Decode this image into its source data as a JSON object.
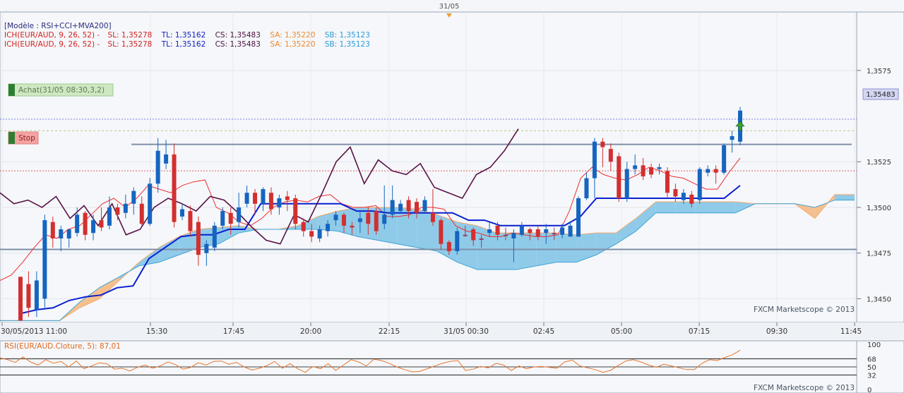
{
  "top_marker": {
    "label": "31/05"
  },
  "legend": {
    "model": "[Modèle : RSI+CCI+MVA200]",
    "lines": [
      {
        "prefix": "ICH(EUR/AUD, 9, 26, 52) -",
        "sl": "SL: 1,35278",
        "tl": "TL: 1,35162",
        "cs": "CS: 1,35483",
        "sa": "SA: 1,35220",
        "sb": "SB: 1,35123"
      },
      {
        "prefix": "ICH(EUR/AUD, 9, 26, 52) -",
        "sl": "SL: 1,35278",
        "tl": "TL: 1,35162",
        "cs": "CS: 1,35483",
        "sa": "SA: 1,35220",
        "sb": "SB: 1,35123"
      }
    ]
  },
  "orders": {
    "buy_label": "Achat(31/05 08:30,3,2)",
    "stop_label": "Stop",
    "buy_price": 1.35483,
    "stop_price": 1.352
  },
  "price_axis": {
    "ticks": [
      1.3575,
      1.3525,
      1.35,
      1.3475,
      1.345
    ],
    "tick_labels": [
      "1,3575",
      "1,3525",
      "1,3500",
      "1,3475",
      "1,3450"
    ],
    "current_label": "1,35483",
    "current_value": 1.35483,
    "min": 1.3437,
    "max": 1.3607
  },
  "time_axis": {
    "labels": [
      "30/05/2013 11:00",
      "15:30",
      "17:45",
      "20:00",
      "22:15",
      "31/05 00:30",
      "02:45",
      "05:00",
      "07:15",
      "09:30",
      "11:45"
    ]
  },
  "watermark": "FXCM Marketscope © 2013",
  "oscillator": {
    "label": "RSI(EUR/AUD.Cloture, 5): 87,01",
    "levels": [
      100,
      68,
      50,
      32,
      0
    ],
    "level_labels": [
      "100",
      "68",
      "50",
      "32",
      "0"
    ],
    "values": [
      70,
      66,
      60,
      72,
      61,
      54,
      66,
      58,
      62,
      50,
      63,
      46,
      52,
      59,
      57,
      45,
      47,
      41,
      49,
      54,
      47,
      52,
      61,
      55,
      45,
      49,
      59,
      54,
      62,
      63,
      56,
      60,
      50,
      43,
      47,
      53,
      62,
      47,
      57,
      46,
      38,
      51,
      46,
      57,
      42,
      54,
      66,
      61,
      52,
      67,
      64,
      58,
      50,
      44,
      39,
      40,
      46,
      52,
      58,
      62,
      64,
      42,
      45,
      51,
      48,
      58,
      54,
      42,
      52,
      46,
      50,
      51,
      49,
      47,
      61,
      65,
      52,
      48,
      44,
      38,
      42,
      53,
      63,
      66,
      61,
      54,
      49,
      56,
      52,
      48,
      44,
      44,
      58,
      66,
      64,
      71,
      77,
      87
    ],
    "watermark": "FXCM Marketscope © 2013"
  },
  "colors": {
    "bull": "#1565c0",
    "bear": "#d32f2f",
    "flat": "#8e4463",
    "tenkan": "#ef2d2d",
    "kijun": "#0a1fd0",
    "chikou": "#5a1245",
    "cloud_bull": "#8fcbe9",
    "cloud_bear": "#f6c08e",
    "senkou_a": "#f3a76a",
    "senkou_b": "#3fa3d6",
    "rsi": "#e8762c"
  },
  "chart_data": {
    "type": "candlestick",
    "symbol": "EUR/AUD",
    "candles": [
      [
        1.3462,
        1.3438,
        1.3462,
        1.3438
      ],
      [
        1.3458,
        1.3445,
        1.3465,
        1.344
      ],
      [
        1.3444,
        1.346,
        1.3465,
        1.344
      ],
      [
        1.345,
        1.3493,
        1.3496,
        1.3445
      ],
      [
        1.3492,
        1.3483,
        1.3495,
        1.3478
      ],
      [
        1.3483,
        1.3488,
        1.349,
        1.3476
      ],
      [
        1.3483,
        1.3488,
        1.3488,
        1.3478
      ],
      [
        1.3486,
        1.3496,
        1.35,
        1.3484
      ],
      [
        1.3497,
        1.3485,
        1.3498,
        1.3482
      ],
      [
        1.3486,
        1.3493,
        1.3496,
        1.3482
      ],
      [
        1.3493,
        1.3489,
        1.35,
        1.3487
      ],
      [
        1.349,
        1.35,
        1.3506,
        1.3488
      ],
      [
        1.35,
        1.3496,
        1.3502,
        1.3493
      ],
      [
        1.3497,
        1.3502,
        1.3507,
        1.3494
      ],
      [
        1.3502,
        1.3509,
        1.3511,
        1.3496
      ],
      [
        1.3502,
        1.3491,
        1.3506,
        1.349
      ],
      [
        1.3491,
        1.3513,
        1.3516,
        1.349
      ],
      [
        1.3513,
        1.3531,
        1.3538,
        1.3508
      ],
      [
        1.3524,
        1.3529,
        1.3537,
        1.3521
      ],
      [
        1.3529,
        1.3492,
        1.3535,
        1.3489
      ],
      [
        1.3495,
        1.3499,
        1.3502,
        1.3493
      ],
      [
        1.3498,
        1.3487,
        1.3501,
        1.3484
      ],
      [
        1.3492,
        1.3474,
        1.3495,
        1.3468
      ],
      [
        1.3475,
        1.348,
        1.3482,
        1.3468
      ],
      [
        1.3478,
        1.349,
        1.3492,
        1.3476
      ],
      [
        1.349,
        1.3498,
        1.35,
        1.3488
      ],
      [
        1.3497,
        1.3491,
        1.35,
        1.3485
      ],
      [
        1.3492,
        1.35,
        1.3508,
        1.3489
      ],
      [
        1.3502,
        1.3508,
        1.3512,
        1.35
      ],
      [
        1.3508,
        1.3502,
        1.351,
        1.3496
      ],
      [
        1.3502,
        1.351,
        1.3511,
        1.3498
      ],
      [
        1.3508,
        1.3499,
        1.3511,
        1.3496
      ],
      [
        1.35,
        1.3505,
        1.3507,
        1.3496
      ],
      [
        1.3506,
        1.3504,
        1.3509,
        1.3498
      ],
      [
        1.3505,
        1.3491,
        1.3507,
        1.3488
      ],
      [
        1.3492,
        1.3487,
        1.3494,
        1.3484
      ],
      [
        1.3487,
        1.3484,
        1.3491,
        1.3481
      ],
      [
        1.3483,
        1.3488,
        1.349,
        1.3481
      ],
      [
        1.3487,
        1.3491,
        1.3493,
        1.3484
      ],
      [
        1.3493,
        1.3496,
        1.3498,
        1.349
      ],
      [
        1.3496,
        1.349,
        1.3497,
        1.3486
      ],
      [
        1.349,
        1.3489,
        1.3492,
        1.3485
      ],
      [
        1.3492,
        1.3494,
        1.3498,
        1.3486
      ],
      [
        1.3497,
        1.3491,
        1.35,
        1.3485
      ],
      [
        1.3498,
        1.3487,
        1.35,
        1.3485
      ],
      [
        1.3491,
        1.3496,
        1.3512,
        1.3488
      ],
      [
        1.3496,
        1.3504,
        1.3512,
        1.3494
      ],
      [
        1.3498,
        1.3502,
        1.3504,
        1.3497
      ],
      [
        1.3504,
        1.3498,
        1.3506,
        1.3494
      ],
      [
        1.3503,
        1.3497,
        1.3505,
        1.3494
      ],
      [
        1.3498,
        1.3504,
        1.3506,
        1.3497
      ],
      [
        1.3497,
        1.3492,
        1.351,
        1.349
      ],
      [
        1.3493,
        1.348,
        1.3494,
        1.3477
      ],
      [
        1.3481,
        1.3476,
        1.3482,
        1.3474
      ],
      [
        1.3476,
        1.3487,
        1.3489,
        1.3474
      ],
      [
        1.3485,
        1.3485,
        1.349,
        1.3484
      ],
      [
        1.3488,
        1.3482,
        1.3489,
        1.3479
      ],
      [
        1.3483,
        1.3483,
        1.3485,
        1.3478
      ],
      [
        1.3486,
        1.3488,
        1.3492,
        1.3484
      ],
      [
        1.349,
        1.3485,
        1.3492,
        1.3482
      ],
      [
        1.3485,
        1.3485,
        1.3489,
        1.3482
      ],
      [
        1.3483,
        1.3486,
        1.3488,
        1.347
      ],
      [
        1.3485,
        1.349,
        1.3492,
        1.3484
      ],
      [
        1.3488,
        1.3486,
        1.3489,
        1.3482
      ],
      [
        1.3488,
        1.3484,
        1.349,
        1.3482
      ],
      [
        1.3486,
        1.3488,
        1.3491,
        1.348
      ],
      [
        1.3486,
        1.3486,
        1.3489,
        1.3482
      ],
      [
        1.3485,
        1.3489,
        1.3491,
        1.3483
      ],
      [
        1.3484,
        1.349,
        1.3492,
        1.3484
      ],
      [
        1.3484,
        1.3505,
        1.3506,
        1.3484
      ],
      [
        1.3505,
        1.3516,
        1.3519,
        1.3504
      ],
      [
        1.3516,
        1.3536,
        1.3538,
        1.3505
      ],
      [
        1.3536,
        1.3533,
        1.3538,
        1.3522
      ],
      [
        1.3532,
        1.3525,
        1.3535,
        1.352
      ],
      [
        1.3528,
        1.3505,
        1.353,
        1.3503
      ],
      [
        1.3505,
        1.3521,
        1.3525,
        1.3503
      ],
      [
        1.3521,
        1.3523,
        1.3529,
        1.3518
      ],
      [
        1.3523,
        1.3517,
        1.3527,
        1.3515
      ],
      [
        1.3522,
        1.3518,
        1.3524,
        1.3516
      ],
      [
        1.3521,
        1.3522,
        1.3524,
        1.3518
      ],
      [
        1.352,
        1.3508,
        1.3522,
        1.3505
      ],
      [
        1.351,
        1.3506,
        1.3513,
        1.3503
      ],
      [
        1.3504,
        1.3508,
        1.351,
        1.3502
      ],
      [
        1.3507,
        1.3502,
        1.3509,
        1.35
      ],
      [
        1.3504,
        1.3521,
        1.3522,
        1.3502
      ],
      [
        1.3519,
        1.3521,
        1.3523,
        1.3517
      ],
      [
        1.3521,
        1.3519,
        1.3523,
        1.3513
      ],
      [
        1.3519,
        1.3534,
        1.3535,
        1.3518
      ],
      [
        1.3537,
        1.3539,
        1.3542,
        1.353
      ],
      [
        1.3536,
        1.3553,
        1.3555,
        1.3534
      ]
    ],
    "candle_x_step": 7.3,
    "tenkan": [
      1.346,
      1.3463,
      1.347,
      1.3478,
      1.3485,
      1.3483,
      1.3488,
      1.349,
      1.3496,
      1.3502,
      1.3505,
      1.35,
      1.3505,
      1.3512,
      1.351,
      1.3508,
      1.3512,
      1.3514,
      1.3515,
      1.35,
      1.3497,
      1.3492,
      1.349,
      1.3494,
      1.35,
      1.3503,
      1.3504,
      1.3503,
      1.3506,
      1.3507,
      1.3502,
      1.35,
      1.35,
      1.3501,
      1.3495,
      1.3495,
      1.3496,
      1.35,
      1.35,
      1.3499,
      1.349,
      1.3487,
      1.3486,
      1.3484,
      1.3484,
      1.3486,
      1.3485,
      1.3484,
      1.3484,
      1.3485,
      1.3498,
      1.3516,
      1.3522,
      1.3518,
      1.3516,
      1.3515,
      1.3518,
      1.3522,
      1.352,
      1.3517,
      1.3516,
      1.3513,
      1.351,
      1.351,
      1.3519,
      1.3527
    ],
    "kijun": [
      1.3442,
      1.3444,
      1.3445,
      1.3449,
      1.3451,
      1.3452,
      1.3456,
      1.3457,
      1.3472,
      1.3478,
      1.3484,
      1.3485,
      1.3485,
      1.3488,
      1.3488,
      1.3502,
      1.3502,
      1.3502,
      1.3502,
      1.3502,
      1.3502,
      1.3498,
      1.3498,
      1.3497,
      1.3497,
      1.3497,
      1.3497,
      1.3497,
      1.3493,
      1.3493,
      1.349,
      1.349,
      1.349,
      1.349,
      1.349,
      1.3495,
      1.3505,
      1.3505,
      1.3505,
      1.3505,
      1.3505,
      1.3505,
      1.3505,
      1.3505,
      1.3505,
      1.3512
    ],
    "chikou": [
      1.3508,
      1.3502,
      1.3504,
      1.35,
      1.3506,
      1.3494,
      1.3501,
      1.349,
      1.3502,
      1.3485,
      1.3488,
      1.35,
      1.3505,
      1.3502,
      1.3498,
      1.3506,
      1.3504,
      1.3497,
      1.3489,
      1.3482,
      1.348,
      1.3496,
      1.3492,
      1.3508,
      1.3525,
      1.3533,
      1.3513,
      1.3526,
      1.352,
      1.3518,
      1.3524,
      1.3511,
      1.3508,
      1.3505,
      1.3518,
      1.3522,
      1.3531,
      1.3543
    ],
    "cloud": {
      "senkou_a": [
        1.3438,
        1.3438,
        1.3438,
        1.3438,
        1.3445,
        1.345,
        1.346,
        1.347,
        1.3478,
        1.3484,
        1.3488,
        1.3489,
        1.349,
        1.3488,
        1.3488,
        1.349,
        1.3495,
        1.3498,
        1.35,
        1.35,
        1.35,
        1.3499,
        1.3496,
        1.3492,
        1.349,
        1.3486,
        1.3486,
        1.3486,
        1.3486,
        1.3485,
        1.3486,
        1.3486,
        1.3494,
        1.3503,
        1.3503,
        1.3503,
        1.3503,
        1.3503,
        1.3502,
        1.3502,
        1.3502,
        1.3494,
        1.3507,
        1.3507
      ],
      "senkou_b": [
        1.3438,
        1.3438,
        1.3438,
        1.3438,
        1.3448,
        1.3456,
        1.3462,
        1.3468,
        1.347,
        1.3474,
        1.3478,
        1.348,
        1.3486,
        1.3488,
        1.3488,
        1.3488,
        1.3488,
        1.3487,
        1.3484,
        1.3482,
        1.348,
        1.3478,
        1.3476,
        1.347,
        1.3466,
        1.3466,
        1.3466,
        1.3468,
        1.347,
        1.347,
        1.3474,
        1.348,
        1.3487,
        1.3497,
        1.3497,
        1.3497,
        1.3497,
        1.3497,
        1.3502,
        1.3502,
        1.3502,
        1.35,
        1.3504,
        1.3504
      ]
    },
    "horizontal_lines": [
      1.35345,
      1.35162,
      1.3477
    ],
    "ylim": [
      1.3437,
      1.3607
    ]
  }
}
